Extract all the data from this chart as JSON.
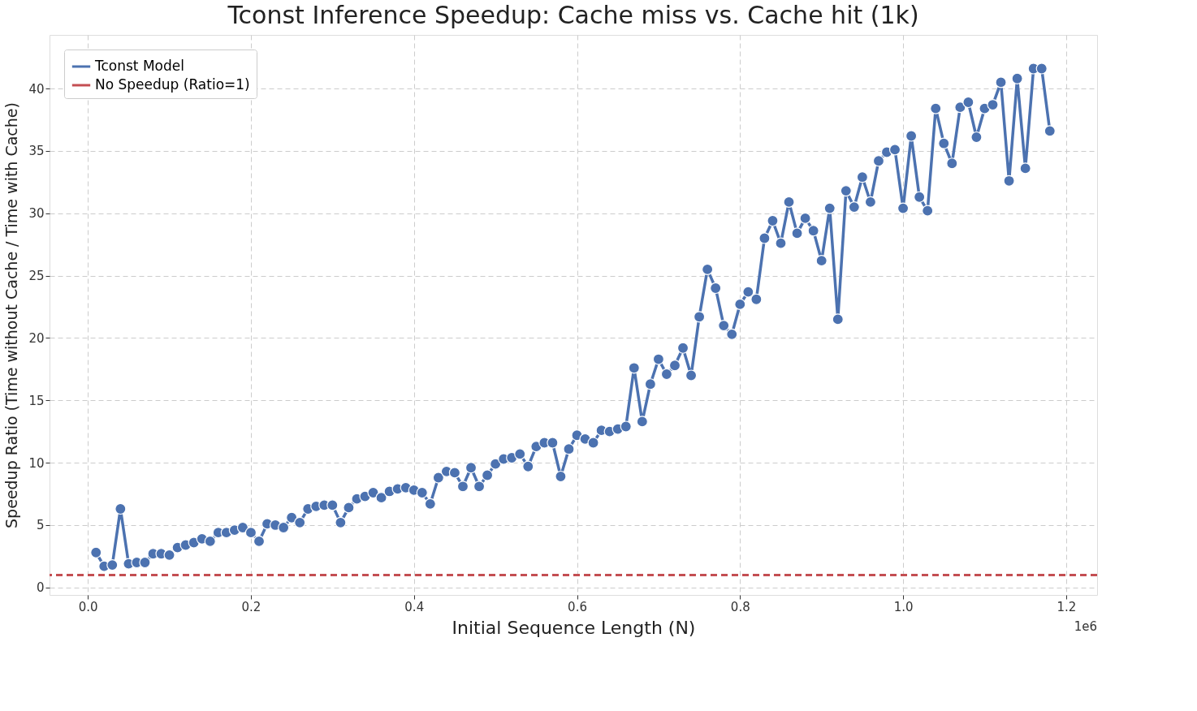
{
  "chart_data": {
    "type": "line",
    "title": "Tconst Inference Speedup: Cache miss vs. Cache hit (1k)",
    "xlabel": "Initial Sequence Length (N)",
    "ylabel": "Speedup Ratio (Time without Cache / Time with Cache)",
    "annotations": [
      "1e6"
    ],
    "x": [
      0.01,
      0.02,
      0.03,
      0.04,
      0.05,
      0.06,
      0.07,
      0.08,
      0.09,
      0.1,
      0.11,
      0.12,
      0.13,
      0.14,
      0.15,
      0.16,
      0.17,
      0.18,
      0.19,
      0.2,
      0.21,
      0.22,
      0.23,
      0.24,
      0.25,
      0.26,
      0.27,
      0.28,
      0.29,
      0.3,
      0.31,
      0.32,
      0.33,
      0.34,
      0.35,
      0.36,
      0.37,
      0.38,
      0.39,
      0.4,
      0.41,
      0.42,
      0.43,
      0.44,
      0.45,
      0.46,
      0.47,
      0.48,
      0.49,
      0.5,
      0.51,
      0.52,
      0.53,
      0.54,
      0.55,
      0.56,
      0.57,
      0.58,
      0.59,
      0.6,
      0.61,
      0.62,
      0.63,
      0.64,
      0.65,
      0.66,
      0.67,
      0.68,
      0.69,
      0.7,
      0.71,
      0.72,
      0.73,
      0.74,
      0.75,
      0.76,
      0.77,
      0.78,
      0.79,
      0.8,
      0.81,
      0.82,
      0.83,
      0.84,
      0.85,
      0.86,
      0.87,
      0.88,
      0.89,
      0.9,
      0.91,
      0.92,
      0.93,
      0.94,
      0.95,
      0.96,
      0.97,
      0.98,
      0.99,
      1.0,
      1.01,
      1.02,
      1.03,
      1.04,
      1.05,
      1.06,
      1.07,
      1.08,
      1.09,
      1.1,
      1.11,
      1.12,
      1.13,
      1.14,
      1.15,
      1.16,
      1.17,
      1.18
    ],
    "series": [
      {
        "name": "Tconst Model",
        "color": "#4c72b0",
        "values": [
          2.8,
          1.7,
          1.8,
          6.3,
          1.9,
          2.0,
          2.0,
          2.7,
          2.7,
          2.6,
          3.2,
          3.4,
          3.6,
          3.9,
          3.7,
          4.4,
          4.4,
          4.6,
          4.8,
          4.4,
          3.7,
          5.1,
          5.0,
          4.8,
          5.6,
          5.2,
          6.3,
          6.5,
          6.6,
          6.6,
          5.2,
          6.4,
          7.1,
          7.3,
          7.6,
          7.2,
          7.7,
          7.9,
          8.0,
          7.8,
          7.6,
          6.7,
          8.8,
          9.3,
          9.2,
          8.1,
          9.6,
          8.1,
          9.0,
          9.9,
          10.3,
          10.4,
          10.7,
          9.7,
          11.3,
          11.6,
          11.6,
          8.9,
          11.1,
          12.2,
          11.9,
          11.6,
          12.6,
          12.5,
          12.7,
          12.9,
          17.6,
          13.3,
          16.3,
          18.3,
          17.1,
          17.8,
          19.2,
          17.0,
          21.7,
          25.5,
          24.0,
          21.0,
          20.3,
          22.7,
          23.7,
          23.1,
          28.0,
          29.4,
          27.6,
          30.9,
          28.4,
          29.6,
          28.6,
          26.2,
          30.4,
          21.5,
          31.8,
          30.5,
          32.9,
          30.9,
          34.2,
          34.9,
          35.1,
          30.4,
          36.2,
          31.3,
          30.2,
          38.4,
          35.6,
          34.0,
          38.5,
          38.9,
          36.1,
          38.4,
          38.7,
          40.5,
          32.6,
          40.8,
          33.6,
          41.6,
          41.6,
          36.6
        ]
      }
    ],
    "ref_lines": [
      {
        "axis": "y",
        "value": 1,
        "label": "No Speedup (Ratio=1)",
        "color": "#c44e52",
        "line_style": "dashed"
      }
    ],
    "xlim": [
      -0.047,
      1.238
    ],
    "xticks": [
      {
        "value": 0,
        "label": "0.0"
      },
      0.2,
      0.4,
      0.6,
      0.8,
      {
        "value": 1,
        "label": "1.0"
      },
      1.2
    ],
    "ylim": [
      -0.6,
      44.3
    ],
    "yticks": [
      0,
      5,
      10,
      15,
      20,
      25,
      30,
      35,
      40
    ],
    "grid": true,
    "legend": "top left",
    "marker": "circle",
    "line_style": "solid"
  }
}
